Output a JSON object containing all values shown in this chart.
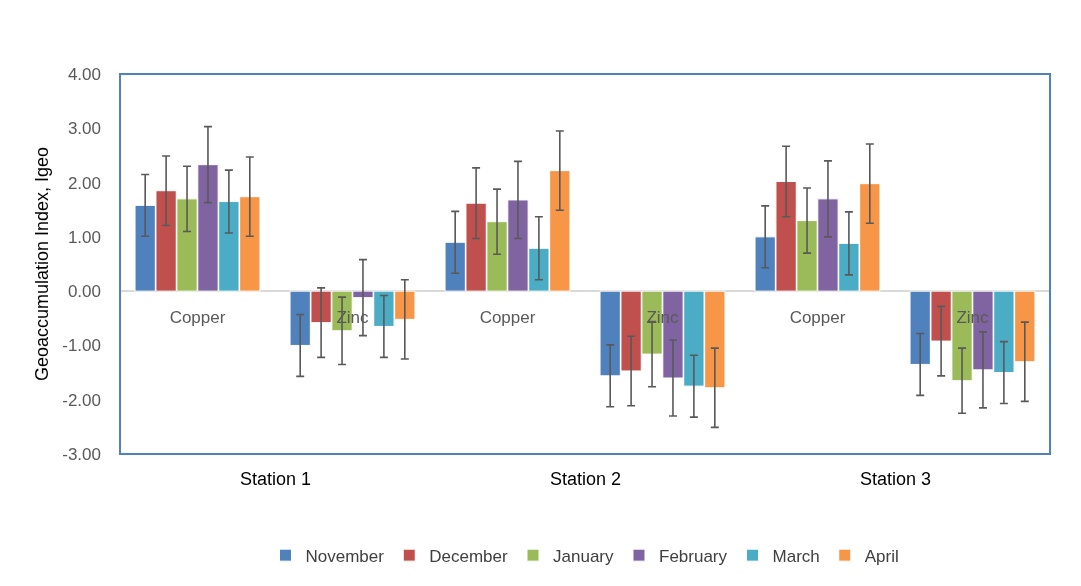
{
  "chart_data": {
    "type": "bar",
    "ylabel": "Geoaccumulation Index, Igeo",
    "categories": [
      "Copper",
      "Zinc",
      "Copper",
      "Zinc",
      "Copper",
      "Zinc"
    ],
    "series": [
      {
        "name": "November",
        "color": "#4f81bd",
        "values": [
          1.58,
          -1.0,
          0.9,
          -1.56,
          1.0,
          -1.35
        ],
        "errors": [
          0.57,
          0.57,
          0.57,
          0.57,
          0.57,
          0.57
        ]
      },
      {
        "name": "December",
        "color": "#c0504d",
        "values": [
          1.85,
          -0.58,
          1.62,
          -1.47,
          2.02,
          -0.92
        ],
        "errors": [
          0.64,
          0.64,
          0.65,
          0.64,
          0.65,
          0.64
        ]
      },
      {
        "name": "January",
        "color": "#9bbb59",
        "values": [
          1.7,
          -0.73,
          1.28,
          -1.16,
          1.3,
          -1.65
        ],
        "errors": [
          0.6,
          0.62,
          0.6,
          0.6,
          0.6,
          0.6
        ]
      },
      {
        "name": "February",
        "color": "#8064a2",
        "values": [
          2.33,
          -0.12,
          1.68,
          -1.6,
          1.7,
          -1.45
        ],
        "errors": [
          0.7,
          0.7,
          0.71,
          0.7,
          0.7,
          0.7
        ]
      },
      {
        "name": "March",
        "color": "#4bacc6",
        "values": [
          1.65,
          -0.65,
          0.79,
          -1.75,
          0.88,
          -1.5
        ],
        "errors": [
          0.58,
          0.57,
          0.58,
          0.57,
          0.58,
          0.57
        ]
      },
      {
        "name": "April",
        "color": "#f79646",
        "values": [
          1.74,
          -0.52,
          2.22,
          -1.78,
          1.98,
          -1.3
        ],
        "errors": [
          0.73,
          0.73,
          0.73,
          0.73,
          0.73,
          0.73
        ]
      }
    ],
    "ylim": [
      -3,
      4
    ],
    "yticks": [
      {
        "value": -3,
        "label": "-3.00"
      },
      {
        "value": -2,
        "label": "-2.00"
      },
      {
        "value": -1,
        "label": "-1.00"
      },
      {
        "value": 0,
        "label": "0.00"
      },
      {
        "value": 1,
        "label": "1.00"
      },
      {
        "value": 2,
        "label": "2.00"
      },
      {
        "value": 3,
        "label": "3.00"
      },
      {
        "value": 4,
        "label": "4.00"
      }
    ],
    "annotations": [
      "Station 1",
      "Station 2",
      "Station 3"
    ],
    "grid": false,
    "legend": "bottom"
  }
}
